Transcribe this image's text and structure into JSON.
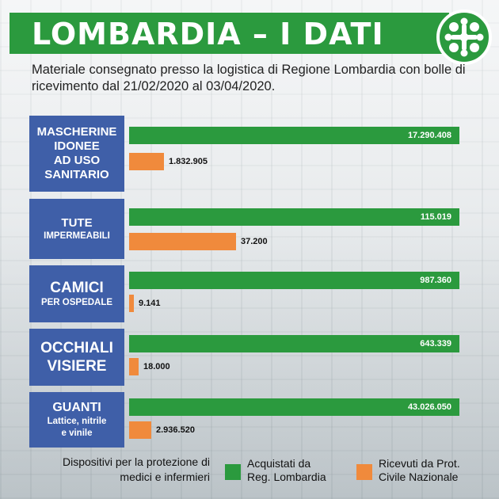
{
  "header": {
    "title": "LOMBARDIA – I DATI",
    "subtitle": "Materiale consegnato presso la logistica di Regione Lombardia con bolle di ricevimento dal 21/02/2020 al 03/04/2020."
  },
  "colors": {
    "green": "#2b9a3e",
    "orange": "#f08a3c",
    "category_box": "#3f5fa8"
  },
  "categories": [
    {
      "line1": "MASCHERINE",
      "line2": "IDONEE",
      "line3": "AD USO",
      "line4": "SANITARIO"
    },
    {
      "line1": "TUTE",
      "line2": "IMPERMEABILI"
    },
    {
      "line1": "CAMICI",
      "line2": "PER OSPEDALE"
    },
    {
      "line1": "OCCHIALI",
      "line2": "VISIERE"
    },
    {
      "line1": "GUANTI",
      "line2": "Lattice, nitrile",
      "line3": "e vinile"
    }
  ],
  "bars": [
    {
      "green_label": "17.290.408",
      "orange_label": "1.832.905"
    },
    {
      "green_label": "115.019",
      "orange_label": "37.200"
    },
    {
      "green_label": "987.360",
      "orange_label": "9.141"
    },
    {
      "green_label": "643.339",
      "orange_label": "18.000"
    },
    {
      "green_label": "43.026.050",
      "orange_label": "2.936.520"
    }
  ],
  "footer": {
    "note_line1": "Dispositivi per la protezione di",
    "note_line2": "medici e infermieri"
  },
  "legend": [
    {
      "line1": "Acquistati da",
      "line2": "Reg. Lombardia"
    },
    {
      "line1": "Ricevuti da Prot.",
      "line2": "Civile Nazionale"
    }
  ],
  "chart_data": {
    "type": "bar",
    "orientation": "horizontal",
    "note": "Each category's bars are scaled independently; the green bar fills the panel width.",
    "categories": [
      "MASCHERINE IDONEE AD USO SANITARIO",
      "TUTE IMPERMEABILI",
      "CAMICI PER OSPEDALE",
      "OCCHIALI VISIERE",
      "GUANTI Lattice, nitrile e vinile"
    ],
    "series": [
      {
        "name": "Acquistati da Reg. Lombardia",
        "values": [
          17290408,
          115019,
          987360,
          643339,
          43026050
        ]
      },
      {
        "name": "Ricevuti da Prot. Civile Nazionale",
        "values": [
          1832905,
          37200,
          9141,
          18000,
          2936520
        ]
      }
    ],
    "legend_position": "bottom-right"
  }
}
